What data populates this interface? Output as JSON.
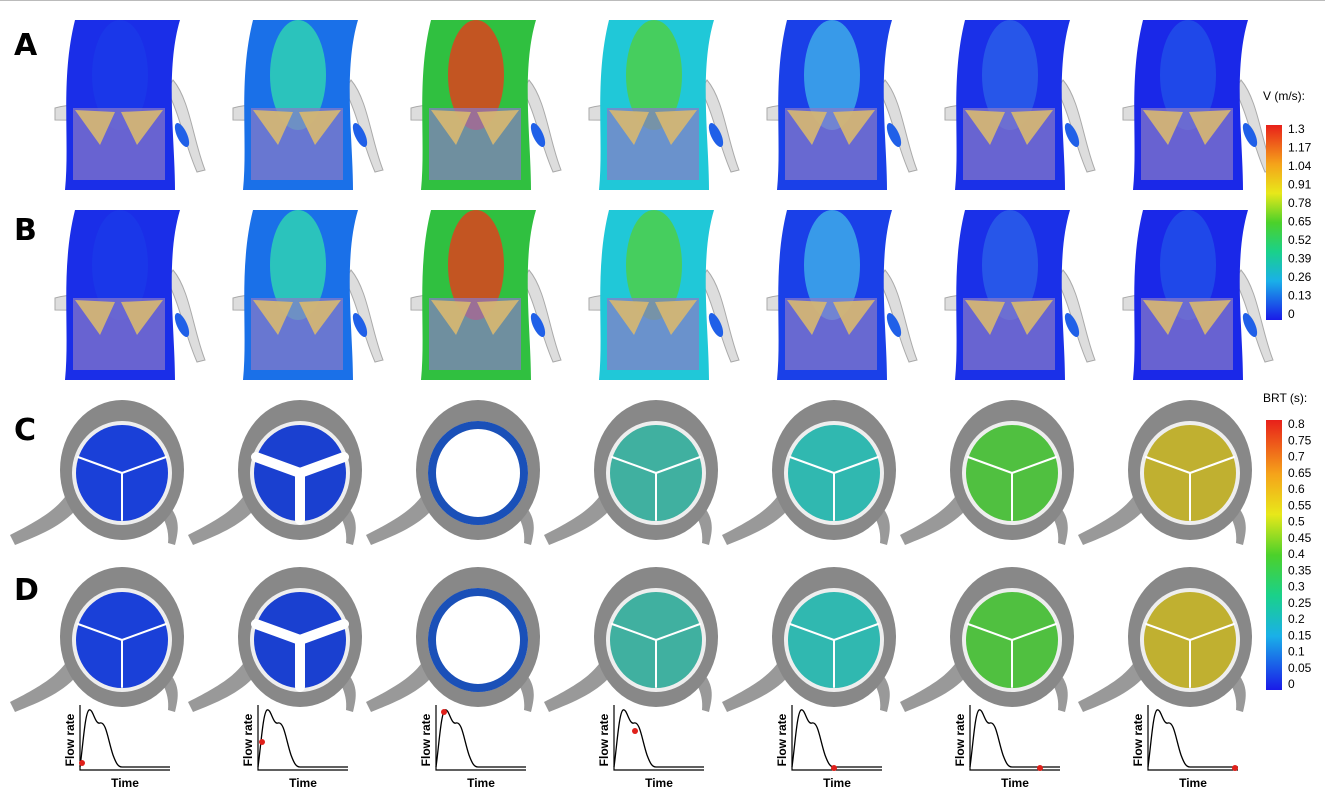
{
  "rows": [
    {
      "label": "A"
    },
    {
      "label": "B"
    },
    {
      "label": "C"
    },
    {
      "label": "D"
    }
  ],
  "legends": [
    {
      "title": "V (m/s):",
      "ticks": [
        "1.3",
        "1.17",
        "1.04",
        "0.91",
        "0.78",
        "0.65",
        "0.52",
        "0.39",
        "0.26",
        "0.13",
        "0"
      ]
    },
    {
      "title": "BRT (s):",
      "ticks": [
        "0.8",
        "0.75",
        "0.7",
        "0.65",
        "0.6",
        "0.55",
        "0.5",
        "0.45",
        "0.4",
        "0.35",
        "0.3",
        "0.25",
        "0.2",
        "0.15",
        "0.1",
        "0.05",
        "0"
      ]
    }
  ],
  "flow_plots": [
    {
      "y_label": "Flow rate",
      "x_label": "Time"
    },
    {
      "y_label": "Flow rate",
      "x_label": "Time"
    },
    {
      "y_label": "Flow rate",
      "x_label": "Time"
    },
    {
      "y_label": "Flow rate",
      "x_label": "Time"
    },
    {
      "y_label": "Flow rate",
      "x_label": "Time"
    },
    {
      "y_label": "Flow rate",
      "x_label": "Time"
    },
    {
      "y_label": "Flow rate",
      "x_label": "Time"
    }
  ]
}
